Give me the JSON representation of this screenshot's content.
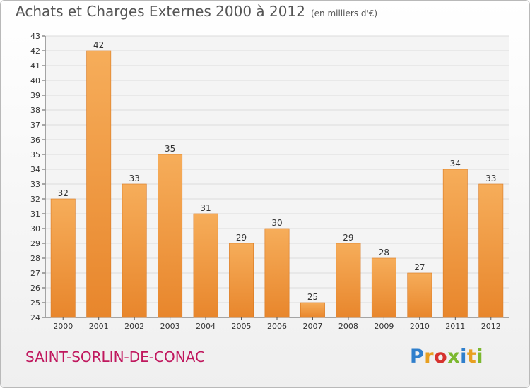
{
  "header": {
    "title": "Achats et Charges Externes 2000 à 2012",
    "unit": "(en milliers d'€)"
  },
  "footer": {
    "commune": "SAINT-SORLIN-DE-CONAC",
    "logo_letters": [
      "P",
      "r",
      "o",
      "x",
      "i",
      "t",
      "i"
    ],
    "logo_colors": [
      "#2f7fcc",
      "#e8a021",
      "#d6322e",
      "#7cb82f",
      "#2f7fcc",
      "#e8a021",
      "#7cb82f"
    ]
  },
  "colors": {
    "bar": "#e8862c",
    "bar_light": "#f6ad5a",
    "grid": "#dcdcdc",
    "axis": "#555555"
  },
  "chart_data": {
    "type": "bar",
    "title": "Achats et Charges Externes 2000 à 2012",
    "categories": [
      "2000",
      "2001",
      "2002",
      "2003",
      "2004",
      "2005",
      "2006",
      "2007",
      "2008",
      "2009",
      "2010",
      "2011",
      "2012"
    ],
    "values": [
      32,
      42,
      33,
      35,
      31,
      29,
      30,
      25,
      29,
      28,
      27,
      34,
      33
    ],
    "ylim": [
      24,
      43
    ],
    "yticks": [
      24,
      25,
      26,
      27,
      28,
      29,
      30,
      31,
      32,
      33,
      34,
      35,
      36,
      37,
      38,
      39,
      40,
      41,
      42,
      43
    ],
    "xlabel": "",
    "ylabel": "",
    "grid": true,
    "legend": "none"
  }
}
